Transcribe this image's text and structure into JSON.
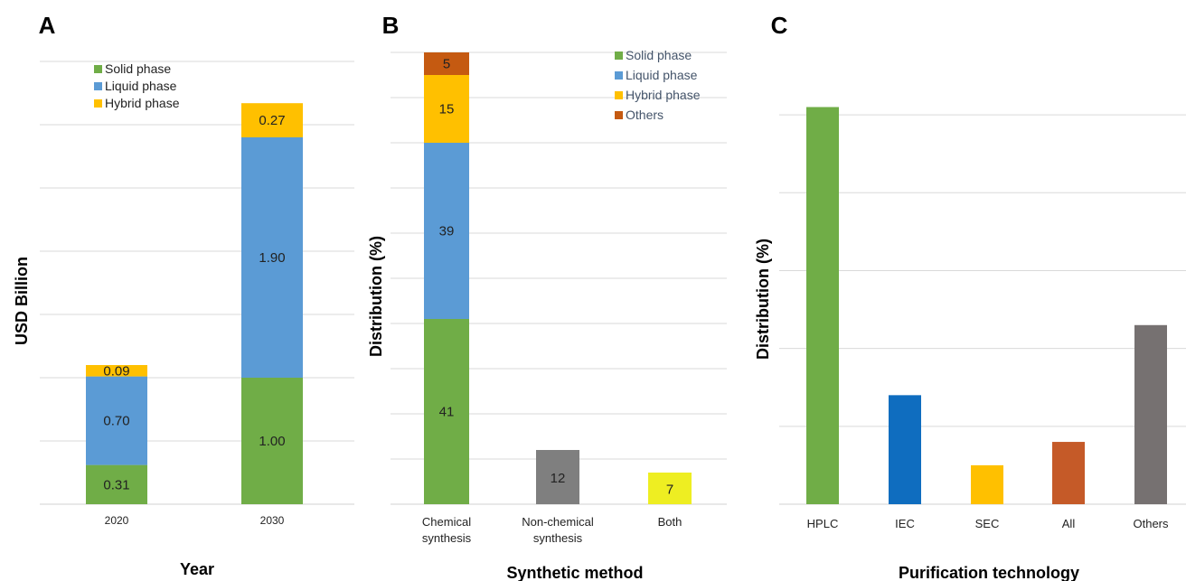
{
  "chart_data": [
    {
      "panel": "A",
      "type": "bar",
      "stacked": true,
      "xlabel": "Year",
      "ylabel": "USD Billion",
      "categories": [
        "2020",
        "2030"
      ],
      "series": [
        {
          "name": "Solid phase",
          "color": "#70ad47",
          "values": [
            0.31,
            1.0
          ],
          "labels": [
            "0.31",
            "1.00"
          ]
        },
        {
          "name": "Liquid phase",
          "color": "#5b9bd5",
          "values": [
            0.7,
            1.9
          ],
          "labels": [
            "0.70",
            "1.90"
          ]
        },
        {
          "name": "Hybrid phase",
          "color": "#ffc000",
          "values": [
            0.09,
            0.27
          ],
          "labels": [
            "0.09",
            "0.27"
          ]
        }
      ],
      "ylim": [
        0,
        3.5
      ],
      "grid": true,
      "legend": "top-left"
    },
    {
      "panel": "B",
      "type": "bar",
      "stacked": true,
      "xlabel": "Synthetic method",
      "ylabel": "Distribution (%)",
      "categories": [
        [
          "Chemical",
          "synthesis"
        ],
        [
          "Non-chemical",
          "synthesis"
        ],
        [
          "Both"
        ]
      ],
      "series": [
        {
          "name": "Solid phase",
          "color": "#70ad47",
          "values": [
            41,
            null,
            null
          ],
          "labels": [
            "41",
            "",
            ""
          ]
        },
        {
          "name": "Liquid phase",
          "color": "#5b9bd5",
          "values": [
            39,
            null,
            null
          ],
          "labels": [
            "39",
            "",
            ""
          ]
        },
        {
          "name": "Hybrid phase",
          "color": "#ffc000",
          "values": [
            15,
            null,
            null
          ],
          "labels": [
            "15",
            "",
            ""
          ]
        },
        {
          "name": "Others",
          "color": "#c55a11",
          "values": [
            5,
            null,
            null
          ],
          "labels": [
            "5",
            "",
            ""
          ]
        }
      ],
      "single_bars": [
        {
          "category_index": 1,
          "value": 12,
          "label": "12",
          "color": "#7f7f7f"
        },
        {
          "category_index": 2,
          "value": 7,
          "label": "7",
          "color": "#eeee22"
        }
      ],
      "ylim": [
        0,
        100
      ],
      "grid": true,
      "legend": "top-right"
    },
    {
      "panel": "C",
      "type": "bar",
      "xlabel": "Purification technology",
      "ylabel": "Distribution (%)",
      "categories": [
        "HPLC",
        "IEC",
        "SEC",
        "All",
        "Others"
      ],
      "values": [
        51,
        14,
        5,
        8,
        23
      ],
      "colors": [
        "#70ad47",
        "#0f6dbf",
        "#ffc000",
        "#c55a28",
        "#767171"
      ],
      "ylim": [
        0,
        55
      ],
      "grid": true
    }
  ]
}
